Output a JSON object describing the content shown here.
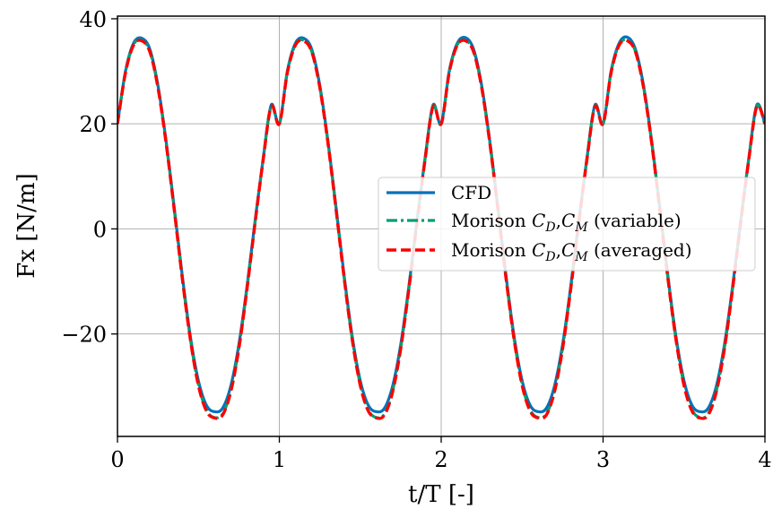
{
  "chart_data": {
    "type": "line",
    "xlabel": "t/T [-]",
    "ylabel": "Fx [N/m]",
    "xlim": [
      0,
      4
    ],
    "ylim": [
      -39.5,
      40.5
    ],
    "xticks": [
      0,
      1,
      2,
      3,
      4
    ],
    "xtick_labels": [
      "0",
      "1",
      "2",
      "3",
      "4"
    ],
    "yticks": [
      -20,
      0,
      20,
      40
    ],
    "ytick_labels": [
      "−20",
      "0",
      "20",
      "40"
    ],
    "grid": true,
    "legend_position": "center-right",
    "x": [
      0,
      0.05,
      0.1,
      0.15,
      0.2,
      0.25,
      0.3,
      0.35,
      0.4,
      0.45,
      0.5,
      0.55,
      0.6,
      0.65,
      0.7,
      0.75,
      0.8,
      0.85,
      0.9,
      0.95,
      1.0,
      1.05,
      1.1,
      1.15,
      1.2,
      1.25,
      1.3,
      1.35,
      1.4,
      1.45,
      1.5,
      1.55,
      1.6,
      1.65,
      1.7,
      1.75,
      1.8,
      1.85,
      1.9,
      1.95,
      2.0,
      2.05,
      2.1,
      2.15,
      2.2,
      2.25,
      2.3,
      2.35,
      2.4,
      2.45,
      2.5,
      2.55,
      2.6,
      2.65,
      2.7,
      2.75,
      2.8,
      2.85,
      2.9,
      2.95,
      3.0,
      3.05,
      3.1,
      3.15,
      3.2,
      3.25,
      3.3,
      3.35,
      3.4,
      3.45,
      3.5,
      3.55,
      3.6,
      3.65,
      3.7,
      3.75,
      3.8,
      3.85,
      3.9,
      3.95,
      4.0
    ],
    "series": [
      {
        "name": "CFD",
        "color": "#0072BD",
        "dash": "solid",
        "values": [
          20.0,
          30.1,
          35.4,
          36.3,
          34.2,
          27.3,
          16.8,
          4.2,
          -8.8,
          -20.4,
          -28.9,
          -33.6,
          -34.8,
          -34.1,
          -29.9,
          -22.0,
          -11.0,
          1.5,
          13.4,
          23.6,
          20.0,
          30.1,
          35.4,
          36.3,
          34.2,
          27.3,
          16.8,
          4.2,
          -8.8,
          -20.4,
          -28.9,
          -33.6,
          -34.8,
          -34.1,
          -29.9,
          -22.0,
          -11.0,
          1.5,
          13.4,
          23.6,
          20.0,
          30.1,
          35.4,
          36.4,
          34.2,
          27.3,
          16.8,
          4.2,
          -8.8,
          -20.4,
          -28.9,
          -33.6,
          -34.8,
          -34.1,
          -29.9,
          -22.0,
          -11.0,
          1.5,
          13.4,
          23.6,
          20.0,
          30.1,
          35.4,
          36.5,
          34.2,
          27.3,
          16.8,
          4.2,
          -8.8,
          -20.4,
          -28.9,
          -33.6,
          -34.8,
          -34.1,
          -29.9,
          -22.0,
          -11.0,
          1.5,
          13.4,
          23.6,
          20.0
        ]
      },
      {
        "name": "Morison C_D,C_M (variable)",
        "color": "#009E73",
        "dash": "dashdot",
        "values": [
          20.0,
          29.9,
          35.1,
          35.9,
          33.8,
          27.0,
          16.5,
          3.9,
          -9.2,
          -20.9,
          -29.6,
          -34.5,
          -35.9,
          -35.2,
          -30.8,
          -22.6,
          -11.4,
          1.2,
          13.2,
          23.4,
          20.0,
          29.9,
          35.1,
          35.9,
          33.8,
          27.0,
          16.5,
          3.9,
          -9.2,
          -20.9,
          -29.6,
          -34.5,
          -35.9,
          -35.2,
          -30.8,
          -22.6,
          -11.4,
          1.2,
          13.2,
          23.4,
          20.0,
          29.9,
          35.1,
          35.9,
          33.8,
          27.0,
          16.5,
          3.9,
          -9.2,
          -20.9,
          -29.6,
          -34.5,
          -35.9,
          -35.2,
          -30.8,
          -22.6,
          -11.4,
          1.2,
          13.2,
          23.4,
          20.0,
          29.9,
          35.1,
          35.9,
          33.8,
          27.0,
          16.5,
          3.9,
          -9.2,
          -20.9,
          -29.6,
          -34.5,
          -35.9,
          -35.2,
          -30.8,
          -22.6,
          -11.4,
          1.2,
          13.2,
          23.4,
          20.0
        ]
      },
      {
        "name": "Morison C_D,C_M (averaged)",
        "color": "#FF0000",
        "dash": "dashed",
        "values": [
          20.0,
          29.8,
          35.0,
          35.8,
          33.7,
          26.9,
          16.4,
          3.8,
          -9.3,
          -21.0,
          -29.8,
          -34.7,
          -36.0,
          -35.4,
          -31.0,
          -22.8,
          -11.5,
          1.1,
          13.1,
          23.3,
          20.0,
          29.8,
          35.0,
          35.8,
          33.7,
          26.9,
          16.4,
          3.8,
          -9.3,
          -21.0,
          -29.8,
          -34.7,
          -36.0,
          -35.4,
          -31.0,
          -22.8,
          -11.5,
          1.1,
          13.1,
          23.3,
          20.0,
          29.8,
          35.0,
          35.8,
          33.7,
          26.9,
          16.4,
          3.8,
          -9.3,
          -21.0,
          -29.8,
          -34.7,
          -36.0,
          -35.4,
          -31.0,
          -22.8,
          -11.5,
          1.1,
          13.1,
          23.3,
          20.0,
          29.8,
          35.0,
          35.8,
          33.7,
          26.9,
          16.4,
          3.8,
          -9.3,
          -21.0,
          -29.8,
          -34.7,
          -36.0,
          -35.4,
          -31.0,
          -22.8,
          -11.5,
          1.1,
          13.1,
          23.3,
          20.0
        ]
      }
    ]
  },
  "legend": {
    "entries": [
      {
        "prefix": "CFD",
        "sub1": "",
        "sep": "",
        "sub2": "",
        "suffix": ""
      },
      {
        "prefix": "Morison ",
        "sub1": "D",
        "sep": ",",
        "sub2": "M",
        "suffix": " (variable)"
      },
      {
        "prefix": "Morison ",
        "sub1": "D",
        "sep": ",",
        "sub2": "M",
        "suffix": " (averaged)"
      }
    ]
  }
}
